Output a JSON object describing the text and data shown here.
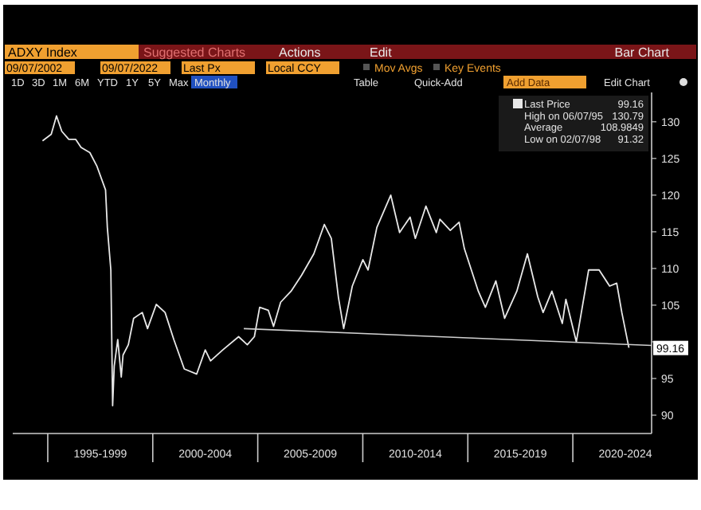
{
  "chart_data": {
    "type": "line",
    "title": "ADXY Index",
    "annotations": [
      "Suggested Charts",
      "Actions",
      "Edit",
      "Bar Chart",
      "09/07/2002",
      "09/07/2022",
      "Last Px",
      "Local CCY",
      "Mov Avgs",
      "Key Events",
      "1D",
      "3D",
      "1M",
      "6M",
      "YTD",
      "1Y",
      "5Y",
      "Max",
      "Monthly",
      "Table",
      "Quick-Add",
      "Add Data",
      "Edit Chart",
      "Last Price",
      "99.16",
      "High on 06/07/95",
      "130.79",
      "Average",
      "108.9849",
      "Low on 02/07/98",
      "91.32",
      {
        "text": "99.16",
        "x": "2022-09",
        "y": 99.16
      }
    ],
    "series": [
      {
        "color": "#e8e8e8",
        "x": [
          "1994-10",
          "1995-03",
          "1995-06",
          "1995-09",
          "1996-01",
          "1996-05",
          "1996-08",
          "1997-01",
          "1997-05",
          "1997-10",
          "1997-11",
          "1998-01",
          "1998-02",
          "1998-03",
          "1998-05",
          "1998-07",
          "1998-08",
          "1998-11",
          "1999-02",
          "1999-07",
          "1999-10",
          "2000-03",
          "2000-08",
          "2001-01",
          "2001-07",
          "2002-02",
          "2002-07",
          "2002-10",
          "2003-05",
          "2004-02",
          "2004-07",
          "2004-11",
          "2005-02",
          "2005-07",
          "2005-10",
          "2006-02",
          "2006-08",
          "2007-02",
          "2007-09",
          "2008-03",
          "2008-07",
          "2008-11",
          "2009-02",
          "2009-07",
          "2010-01",
          "2010-04",
          "2010-09",
          "2011-05",
          "2011-10",
          "2012-04",
          "2012-07",
          "2013-01",
          "2013-07",
          "2013-09",
          "2014-03",
          "2014-08",
          "2014-11",
          "2015-07",
          "2015-11",
          "2016-05",
          "2016-10",
          "2017-05",
          "2017-11",
          "2018-05",
          "2018-08",
          "2019-01",
          "2019-07",
          "2019-09",
          "2020-03",
          "2020-10",
          "2021-04",
          "2021-10",
          "2022-02",
          "2022-05",
          "2022-09"
        ],
        "values": [
          127.4,
          128.3,
          130.8,
          128.7,
          127.6,
          127.6,
          126.5,
          125.8,
          124.0,
          120.7,
          115.6,
          109.8,
          91.3,
          96.7,
          100.3,
          95.2,
          98.2,
          99.6,
          103.2,
          104.0,
          101.8,
          105.1,
          104.0,
          100.3,
          96.3,
          95.6,
          98.9,
          97.4,
          98.9,
          100.7,
          99.6,
          100.7,
          104.7,
          104.3,
          102.1,
          105.4,
          106.9,
          109.1,
          112.0,
          116.0,
          114.1,
          106.1,
          101.8,
          107.6,
          111.2,
          109.8,
          115.6,
          120.0,
          114.9,
          117.0,
          114.1,
          118.5,
          114.9,
          116.7,
          115.2,
          116.3,
          112.7,
          106.9,
          104.7,
          108.3,
          103.2,
          106.9,
          112.0,
          106.1,
          104.0,
          106.9,
          102.5,
          105.8,
          100.0,
          109.8,
          109.8,
          107.6,
          108.0,
          104.0,
          99.2
        ]
      },
      {
        "color": "#d0d0d0",
        "x": [
          "2004-05",
          "2023-10"
        ],
        "values": [
          101.8,
          99.5
        ]
      }
    ],
    "xlim": [
      "1993-05",
      "2023-10"
    ],
    "xticks": [
      {
        "value": "1997-07",
        "label": "1995-1999"
      },
      {
        "value": "2002-07",
        "label": "2000-2004"
      },
      {
        "value": "2007-07",
        "label": "2005-2009"
      },
      {
        "value": "2012-07",
        "label": "2010-2014"
      },
      {
        "value": "2017-07",
        "label": "2015-2019"
      },
      {
        "value": "2022-07",
        "label": "2020-2024"
      }
    ],
    "ylim": [
      87.5,
      134
    ],
    "yticks": [
      90,
      95,
      {
        "value": 100,
        "label": null
      },
      105,
      110,
      115,
      120,
      125,
      130
    ],
    "grid": false,
    "marker": "none",
    "line_style": "solid"
  }
}
